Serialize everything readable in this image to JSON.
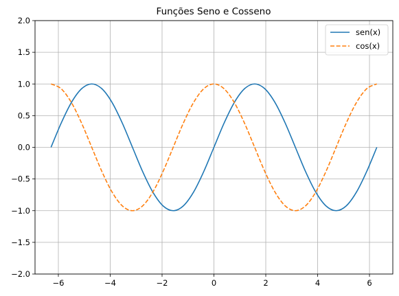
{
  "chart_data": {
    "type": "line",
    "title": "Funções Seno e Cosseno",
    "xlabel": "",
    "ylabel": "",
    "xlim": [
      -6.9,
      6.9
    ],
    "ylim": [
      -2.0,
      2.0
    ],
    "x_ticks": [
      -6,
      -4,
      -2,
      0,
      2,
      4,
      6
    ],
    "x_tick_labels": [
      "−6",
      "−4",
      "−2",
      "0",
      "2",
      "4",
      "6"
    ],
    "y_ticks": [
      -2.0,
      -1.5,
      -1.0,
      -0.5,
      0.0,
      0.5,
      1.0,
      1.5,
      2.0
    ],
    "y_tick_labels": [
      "−2.0",
      "−1.5",
      "−1.0",
      "−0.5",
      "0.0",
      "0.5",
      "1.0",
      "1.5",
      "2.0"
    ],
    "grid": true,
    "legend_position": "top-right",
    "x": [
      -6.2832,
      -5.8905,
      -5.4978,
      -5.1051,
      -4.7124,
      -4.3197,
      -3.927,
      -3.5343,
      -3.1416,
      -2.7489,
      -2.3562,
      -1.9635,
      -1.5708,
      -1.1781,
      -0.7854,
      -0.3927,
      0.0,
      0.3927,
      0.7854,
      1.1781,
      1.5708,
      1.9635,
      2.3562,
      2.7489,
      3.1416,
      3.5343,
      3.927,
      4.3197,
      4.7124,
      5.1051,
      5.4978,
      5.8905,
      6.2832
    ],
    "series": [
      {
        "name": "sen(x)",
        "color": "#1f77b4",
        "style": "solid",
        "values": [
          0.0,
          0.383,
          0.707,
          0.924,
          1.0,
          0.924,
          0.707,
          0.383,
          0.0,
          -0.383,
          -0.707,
          -0.924,
          -1.0,
          -0.924,
          -0.707,
          -0.383,
          0.0,
          0.383,
          0.707,
          0.924,
          1.0,
          0.924,
          0.707,
          0.383,
          0.0,
          -0.383,
          -0.707,
          -0.924,
          -1.0,
          -0.924,
          -0.707,
          -0.383,
          0.0
        ]
      },
      {
        "name": "cos(x)",
        "color": "#ff7f0e",
        "style": "dashed",
        "values": [
          1.0,
          0.924,
          0.707,
          0.383,
          0.0,
          -0.383,
          -0.707,
          -0.924,
          -1.0,
          -0.924,
          -0.707,
          -0.383,
          0.0,
          0.383,
          0.707,
          0.924,
          1.0,
          0.924,
          0.707,
          0.383,
          0.0,
          -0.383,
          -0.707,
          -0.924,
          -1.0,
          -0.924,
          -0.707,
          -0.383,
          0.0,
          0.383,
          0.707,
          0.924,
          1.0
        ]
      }
    ]
  }
}
